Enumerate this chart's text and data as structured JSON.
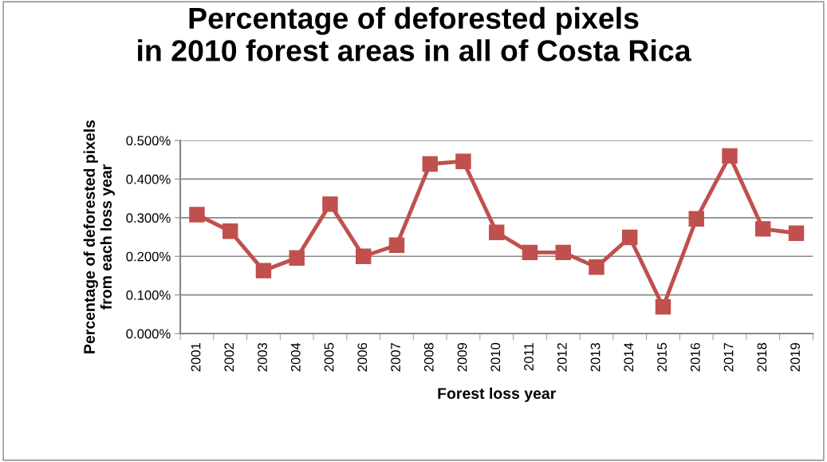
{
  "chart_data": {
    "type": "line",
    "title": "Percentage of deforested pixels\nin 2010 forest areas in all of Costa Rica",
    "xlabel": "Forest loss year",
    "ylabel": "Percentage of deforested pixels\nfrom each loss year",
    "categories": [
      "2001",
      "2002",
      "2003",
      "2004",
      "2005",
      "2006",
      "2007",
      "2008",
      "2009",
      "2010",
      "2011",
      "2012",
      "2013",
      "2014",
      "2015",
      "2016",
      "2017",
      "2018",
      "2019"
    ],
    "series": [
      {
        "color": "#c0504d",
        "values": [
          0.308,
          0.265,
          0.163,
          0.196,
          0.335,
          0.2,
          0.229,
          0.439,
          0.446,
          0.262,
          0.21,
          0.21,
          0.172,
          0.249,
          0.069,
          0.297,
          0.46,
          0.271,
          0.26
        ]
      }
    ],
    "ylim": [
      0,
      0.5
    ],
    "yticks": [
      {
        "value": 0,
        "label": "0.000%"
      },
      {
        "value": 0.1,
        "label": "0.100%"
      },
      {
        "value": 0.2,
        "label": "0.200%"
      },
      {
        "value": 0.3,
        "label": "0.300%"
      },
      {
        "value": 0.4,
        "label": "0.400%"
      },
      {
        "value": 0.5,
        "label": "0.500%"
      }
    ],
    "grid": "y",
    "marker": "square",
    "line_style": "solid"
  }
}
